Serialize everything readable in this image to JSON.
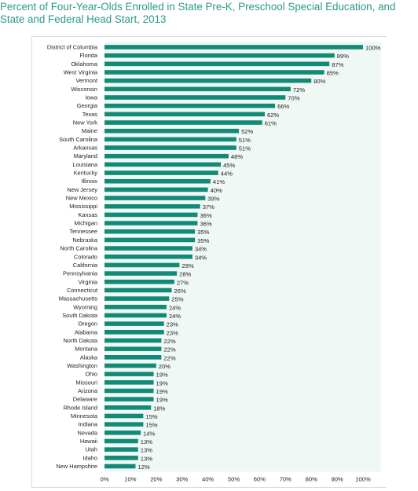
{
  "header": {
    "title_line1": "Percent of Four-Year-Olds Enrolled in State Pre-K, Preschool Special Education, and",
    "title_line2": "State and Federal Head Start, 2013"
  },
  "colors": {
    "bar": "#138a78",
    "plot_bg": "#eff8f4",
    "title": "#2b9a86",
    "label": "#222222"
  },
  "chart_data": {
    "type": "bar",
    "orientation": "horizontal",
    "title": "Percent of Four-Year-Olds Enrolled in State Pre-K, Preschool Special Education, and State and Federal Head Start, 2013",
    "categories": [
      "District of Columbia",
      "Florida",
      "Oklahoma",
      "West Virginia",
      "Vermont",
      "Wisconsin",
      "Iowa",
      "Georgia",
      "Texas",
      "New York",
      "Maine",
      "South Carolina",
      "Arkansas",
      "Maryland",
      "Louisiana",
      "Kentucky",
      "Illinois",
      "New Jersey",
      "New Mexico",
      "Mississippi",
      "Kansas",
      "Michigan",
      "Tennessee",
      "Nebraska",
      "North Carolina",
      "Colorado",
      "California",
      "Pennsylvania",
      "Virginia",
      "Connecticut",
      "Massachusetts",
      "Wyoming",
      "South Dakota",
      "Oregon",
      "Alabama",
      "North Dakota",
      "Montana",
      "Alaska",
      "Washington",
      "Ohio",
      "Missouri",
      "Arizona",
      "Delaware",
      "Rhode Island",
      "Minnesota",
      "Indiana",
      "Nevada",
      "Hawaii",
      "Utah",
      "Idaho",
      "New Hampshire"
    ],
    "values": [
      100,
      89,
      87,
      85,
      80,
      72,
      70,
      66,
      62,
      61,
      52,
      51,
      51,
      48,
      45,
      44,
      41,
      40,
      39,
      37,
      36,
      36,
      35,
      35,
      34,
      34,
      29,
      28,
      27,
      26,
      25,
      24,
      24,
      23,
      23,
      22,
      22,
      22,
      20,
      19,
      19,
      19,
      19,
      18,
      15,
      15,
      14,
      13,
      13,
      13,
      12
    ],
    "value_labels": [
      "100%",
      "89%",
      "87%",
      "85%",
      "80%",
      "72%",
      "70%",
      "66%",
      "62%",
      "61%",
      "52%",
      "51%",
      "51%",
      "48%",
      "45%",
      "44%",
      "41%",
      "40%",
      "39%",
      "37%",
      "36%",
      "36%",
      "35%",
      "35%",
      "34%",
      "34%",
      "29%",
      "28%",
      "27%",
      "26%",
      "25%",
      "24%",
      "24%",
      "23%",
      "23%",
      "22%",
      "22%",
      "22%",
      "20%",
      "19%",
      "19%",
      "19%",
      "19%",
      "18%",
      "15%",
      "15%",
      "14%",
      "13%",
      "13%",
      "13%",
      "12%"
    ],
    "x_ticks": [
      "0%",
      "10%",
      "20%",
      "30%",
      "40%",
      "50%",
      "60%",
      "70%",
      "80%",
      "90%",
      "100%"
    ],
    "xlim": [
      0,
      100
    ],
    "xlabel": "",
    "ylabel": "",
    "grid": false,
    "legend": "none"
  }
}
